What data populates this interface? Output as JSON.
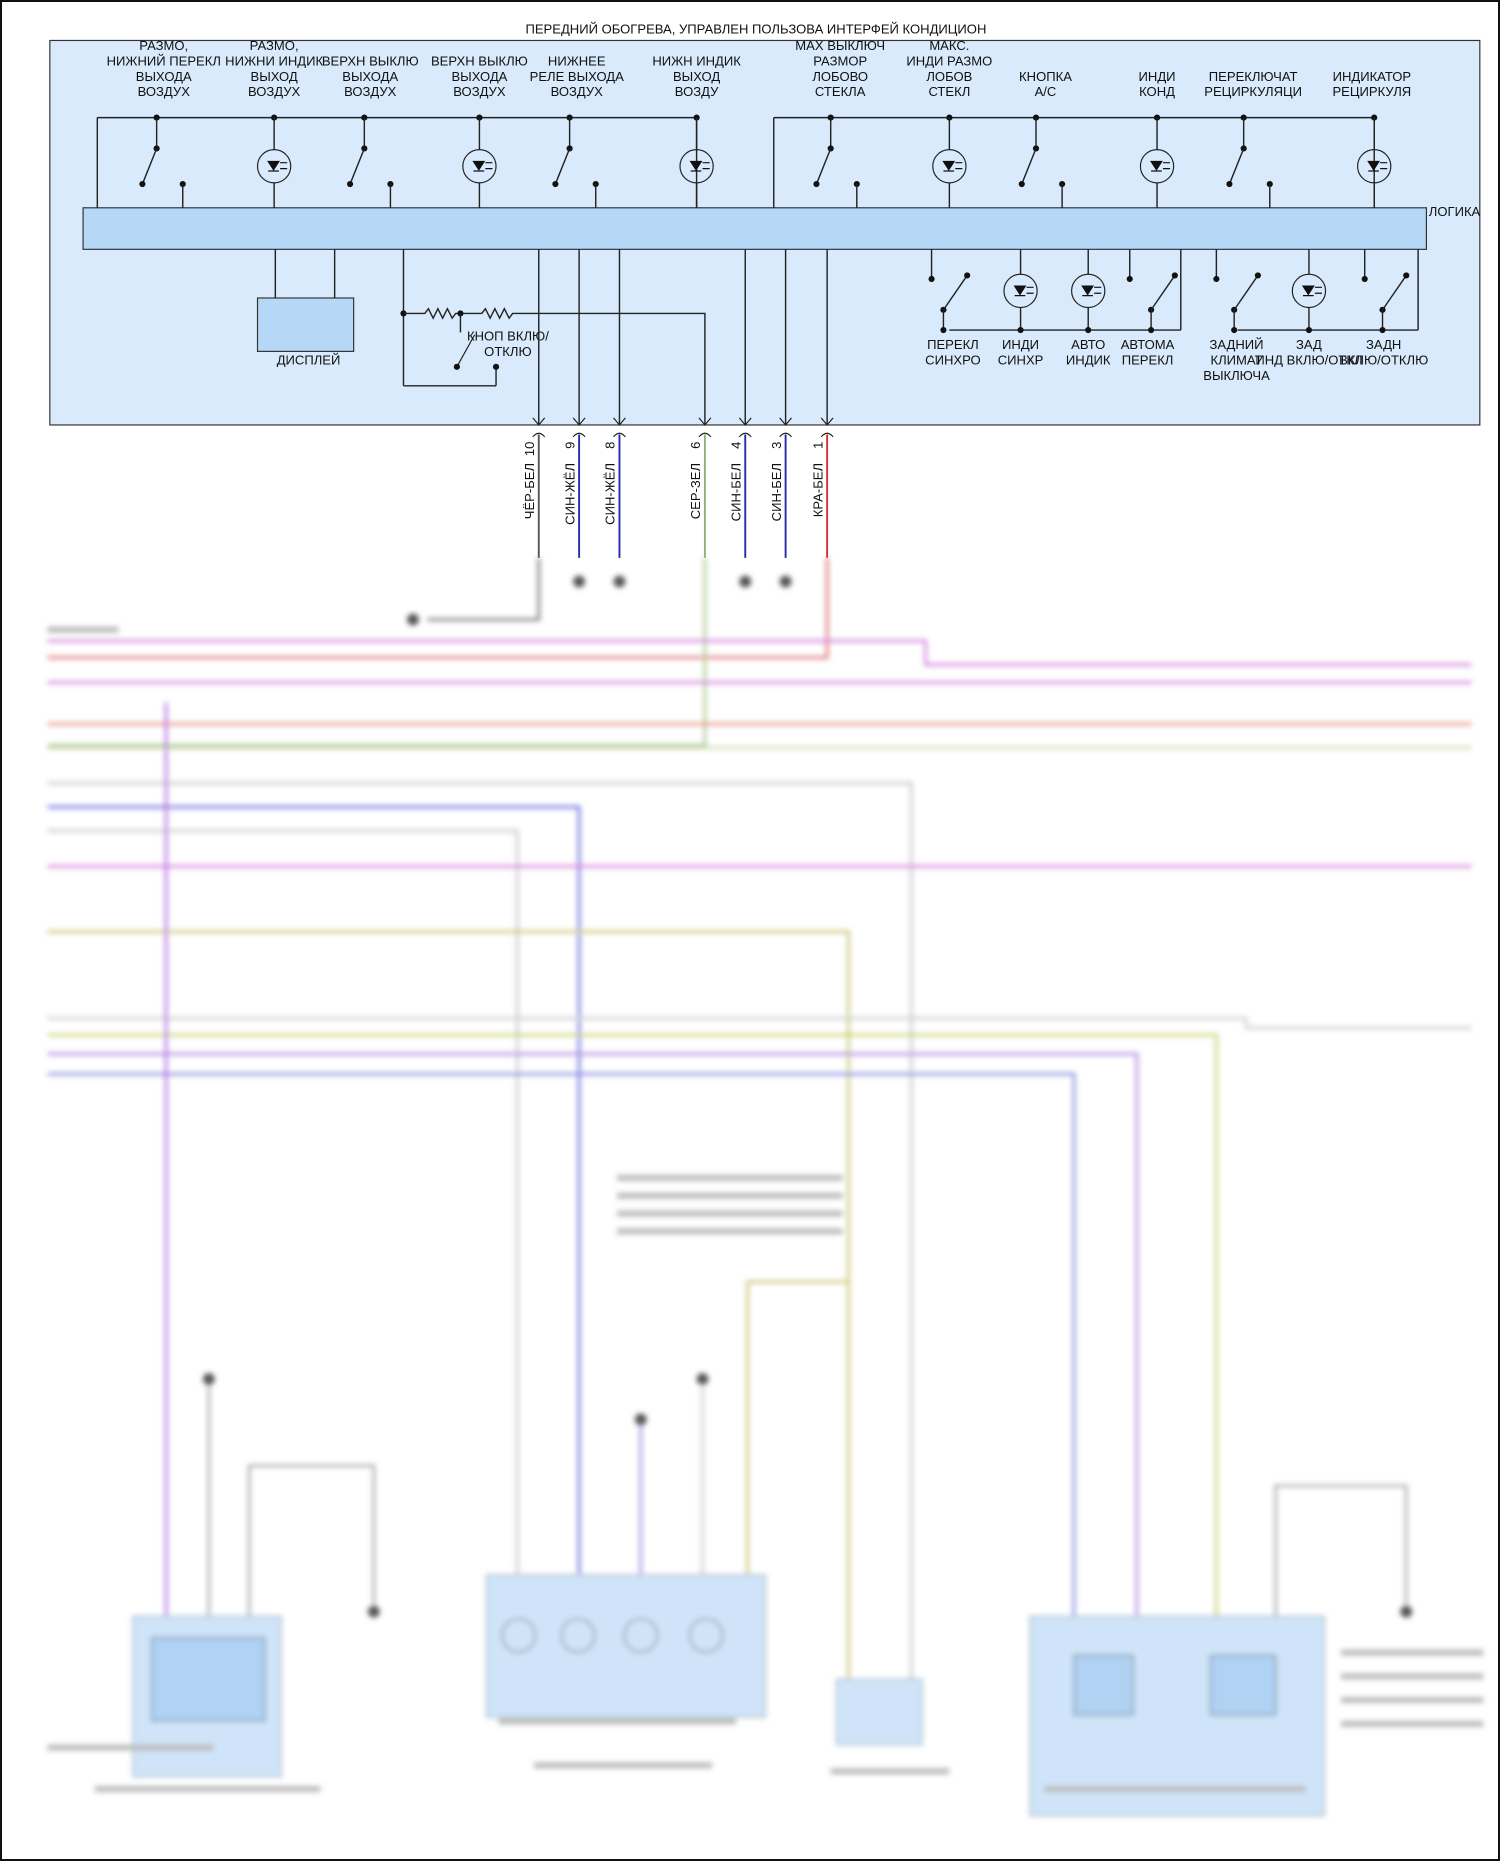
{
  "title": "ПЕРЕДНИЙ ОБОГРЕВА, УПРАВЛЕН ПОЛЬЗОВА ИНТЕРФЕЙ КОНДИЦИОН",
  "logic_label": "ЛОГИКА",
  "display_label": "ДИСПЛЕЙ",
  "onoff_button_label": [
    "КНОП ВКЛЮ/",
    "ОТКЛЮ"
  ],
  "top_components": [
    {
      "icon": "switch-icon",
      "label": [
        "РАЗМО,",
        "НИЖНИЙ ПЕРЕКЛ",
        "ВЫХОДА",
        "ВОЗДУХ"
      ]
    },
    {
      "icon": "led-icon",
      "label": [
        "РАЗМО,",
        "НИЖНИ ИНДИК",
        "ВЫХОД",
        "ВОЗДУХ"
      ]
    },
    {
      "icon": "switch-icon",
      "label": [
        "ВЕРХН ВЫКЛЮ",
        "ВЫХОДА",
        "ВОЗДУХ"
      ]
    },
    {
      "icon": "led-icon",
      "label": [
        "ВЕРХН ВЫКЛЮ",
        "ВЫХОДА",
        "ВОЗДУХ"
      ]
    },
    {
      "icon": "switch-icon",
      "label": [
        "НИЖНЕЕ",
        "РЕЛЕ ВЫХОДА",
        "ВОЗДУХ"
      ]
    },
    {
      "icon": "led-icon",
      "label": [
        "НИЖН ИНДИК",
        "ВЫХОД",
        "ВОЗДУ"
      ]
    },
    {
      "icon": "switch-icon",
      "label": [
        "MAX ВЫКЛЮЧ",
        "РАЗМОР",
        "ЛОБОВО",
        "СТЕКЛА"
      ]
    },
    {
      "icon": "led-icon",
      "label": [
        "МАКС.",
        "ИНДИ РАЗМО",
        "ЛОБОВ",
        "СТЕКЛ"
      ]
    },
    {
      "icon": "switch-icon",
      "label": [
        "КНОПКА",
        "A/C"
      ]
    },
    {
      "icon": "led-icon",
      "label": [
        "ИНДИ",
        "КОНД"
      ]
    },
    {
      "icon": "switch-icon",
      "label": [
        "ПЕРЕКЛЮЧАТ",
        "РЕЦИРКУЛЯЦИ"
      ]
    },
    {
      "icon": "led-icon",
      "label": [
        "ИНДИКАТОР",
        "РЕЦИРКУЛЯ"
      ]
    }
  ],
  "bottom_components": [
    {
      "icon": "switch-icon",
      "label": [
        "ПЕРЕКЛ",
        "СИНХРО"
      ]
    },
    {
      "icon": "led-icon",
      "label": [
        "ИНДИ",
        "СИНХР"
      ]
    },
    {
      "icon": "led-icon",
      "label": [
        "АВТО",
        "ИНДИК"
      ]
    },
    {
      "icon": "switch-icon",
      "label": [
        "АВТОМА",
        "ПЕРЕКЛ"
      ]
    },
    {
      "icon": "switch-icon",
      "label": [
        "ЗАДНИЙ",
        "КЛИМАТ",
        "ВЫКЛЮЧА"
      ]
    },
    {
      "icon": "led-icon",
      "label": [
        "ЗАД",
        "ИНД ВКЛЮ/ОТКЛ"
      ]
    },
    {
      "icon": "switch-icon",
      "label": [
        "ЗАДН",
        "ВКЛЮ/ОТКЛЮ"
      ]
    }
  ],
  "pins": [
    {
      "number": "10",
      "wire": "ЧЁР-БЕЛ",
      "color": "#555555"
    },
    {
      "number": "9",
      "wire": "СИН-ЖЁЛ",
      "color": "#2a2aa8"
    },
    {
      "number": "8",
      "wire": "СИН-ЖЁЛ",
      "color": "#2a2aa8"
    },
    {
      "number": "6",
      "wire": "СЕР-ЗЕЛ",
      "color": "#8fb07a"
    },
    {
      "number": "4",
      "wire": "СИН-БЕЛ",
      "color": "#2a2aa8"
    },
    {
      "number": "3",
      "wire": "СИН-БЕЛ",
      "color": "#2a2aa8"
    },
    {
      "number": "1",
      "wire": "КРА-БЕЛ",
      "color": "#d83030"
    }
  ],
  "colors": {
    "panel": "#d8eafb",
    "bar": "#b5d8f7",
    "line": "#222222"
  }
}
